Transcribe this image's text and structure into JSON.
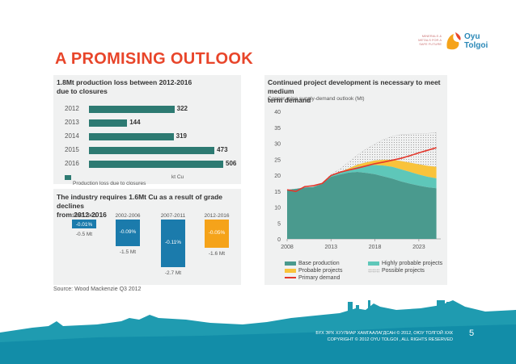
{
  "logo": {
    "small_text": "MINERALS & METALS FOR A SAFE FUTURE",
    "brand": "Oyu Tolgoi"
  },
  "title": "A PROMISING OUTLOOK",
  "left_top_panel": {
    "title_line1": "1.8Mt production loss between 2012-2016",
    "title_line2": "due to closures",
    "legend_label": "Production loss due to closures",
    "unit_label": "kt Cu"
  },
  "left_bottom_panel": {
    "title_line1": "The industry requires 1.6Mt Cu as a result of grade declines",
    "title_line2": "from 2012-2016"
  },
  "right_panel": {
    "title_line1": "Continued project development is necessary to meet medium",
    "title_line2": "term demand",
    "subtitle": "Copper mine supply-demand outlook (Mt)"
  },
  "source": "Source: Wood Mackenzie Q3 2012",
  "footer": {
    "line1": "БҮХ ЭРХ ХУУЛИАР ХАМГААЛАГДСАН © 2012, ОЮУ ТОЛГОЙ ХХК",
    "line2": "COPYRIGHT © 2012 OYU TOLGOI , ALL RIGHTS RESERVED",
    "page": "5"
  },
  "colors": {
    "title": "#e8452a",
    "bar_dark": "#2d7a72",
    "bar_blue": "#1b7bac",
    "bar_orange": "#f5a31a",
    "base": "#4a9a8e",
    "highly": "#5ec7b9",
    "probable": "#f9c33b",
    "demand": "#e3372c"
  },
  "chart_data": [
    {
      "type": "bar",
      "orientation": "horizontal",
      "categories": [
        "2012",
        "2013",
        "2014",
        "2015",
        "2016"
      ],
      "values": [
        322,
        144,
        319,
        473,
        506
      ],
      "xlabel": "kt Cu",
      "legend": [
        "Production loss due to closures"
      ]
    },
    {
      "type": "bar",
      "categories": [
        "1997-2001",
        "2002-2006",
        "2007-2011",
        "2012-2016"
      ],
      "values": [
        -0.5,
        -1.5,
        -2.7,
        -1.6
      ],
      "value_labels": [
        "-0.5 Mt",
        "-1.5 Mt",
        "-2.7 Mt",
        "-1.6 Mt"
      ],
      "pct_labels": [
        "-0.01%",
        "-0.09%",
        "-0.11%",
        "-0.05%"
      ],
      "colors": [
        "#1b7bac",
        "#1b7bac",
        "#1b7bac",
        "#f5a31a"
      ]
    },
    {
      "type": "area",
      "x_ticks": [
        "2008",
        "2013",
        "2018",
        "2023"
      ],
      "y_ticks": [
        "0",
        "5",
        "10",
        "15",
        "20",
        "25",
        "30",
        "35",
        "40"
      ],
      "ylim": [
        0,
        40
      ],
      "x": [
        2008,
        2009,
        2010,
        2011,
        2012,
        2013,
        2014,
        2015,
        2016,
        2017,
        2018,
        2019,
        2020,
        2021,
        2022,
        2023,
        2024,
        2025
      ],
      "series": [
        {
          "name": "Base production",
          "values": [
            15.4,
            15.7,
            16.1,
            16.3,
            17.2,
            19.5,
            20.2,
            20.8,
            21.0,
            20.7,
            20.3,
            19.6,
            18.9,
            18.0,
            17.3,
            16.7,
            16.2,
            15.9
          ]
        },
        {
          "name": "Highly probable projects",
          "values": [
            0,
            0,
            0,
            0,
            0.2,
            0.4,
            0.5,
            0.9,
            1.6,
            2.3,
            2.9,
            3.4,
            3.7,
            3.8,
            3.7,
            3.5,
            3.3,
            3.1
          ]
        },
        {
          "name": "Probable projects",
          "values": [
            0,
            0,
            0,
            0,
            0,
            0,
            0.2,
            0.4,
            0.7,
            1.0,
            1.4,
            1.8,
            2.2,
            2.6,
            2.9,
            3.2,
            3.4,
            3.6
          ]
        },
        {
          "name": "Possible projects",
          "values": [
            0,
            0,
            0,
            0,
            0.1,
            0.4,
            1.0,
            2.0,
            3.0,
            4.2,
            5.2,
            6.4,
            7.4,
            8.3,
            9.0,
            9.6,
            10.2,
            10.8
          ]
        },
        {
          "name": "Primary demand",
          "values": [
            15.4,
            14.9,
            16.4,
            16.7,
            17.4,
            19.9,
            20.9,
            21.6,
            22.2,
            22.9,
            23.6,
            24.1,
            24.7,
            25.3,
            26.1,
            27.0,
            27.8,
            28.6
          ]
        }
      ]
    }
  ]
}
